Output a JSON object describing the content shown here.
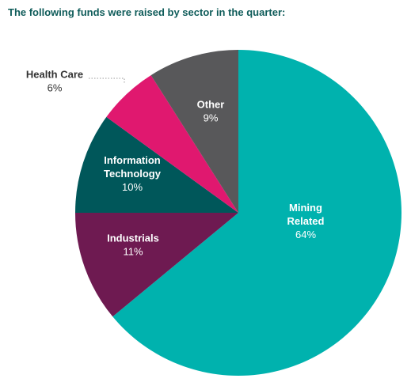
{
  "chart_data": {
    "type": "pie",
    "title": "The following funds were raised by sector in the quarter:",
    "slices": [
      {
        "label": "Mining Related",
        "lines": [
          "Mining",
          "Related"
        ],
        "value": 64,
        "value_label": "64%",
        "color": "#00b2ae",
        "label_color": "#ffffff"
      },
      {
        "label": "Industrials",
        "lines": [
          "Industrials"
        ],
        "value": 11,
        "value_label": "11%",
        "color": "#6e1a51",
        "label_color": "#ffffff"
      },
      {
        "label": "Information Technology",
        "lines": [
          "Information",
          "Technology"
        ],
        "value": 10,
        "value_label": "10%",
        "color": "#00575a",
        "label_color": "#ffffff"
      },
      {
        "label": "Health Care",
        "lines": [
          "Health Care"
        ],
        "value": 6,
        "value_label": "6%",
        "color": "#e0186f",
        "label_color": "#333333",
        "label_outside": true
      },
      {
        "label": "Other",
        "lines": [
          "Other"
        ],
        "value": 9,
        "value_label": "9%",
        "color": "#58585a",
        "label_color": "#ffffff"
      }
    ],
    "start": "top",
    "direction": "clockwise"
  }
}
